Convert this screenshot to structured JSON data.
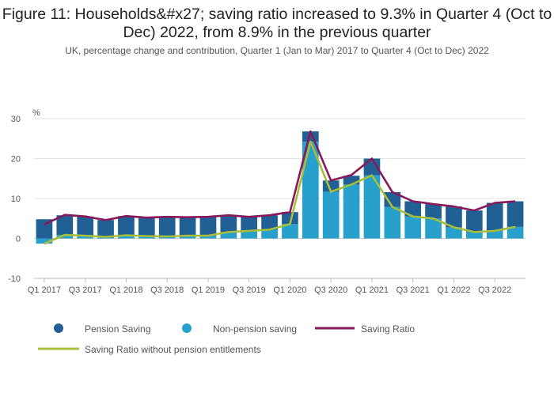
{
  "title": "Figure 11: Households&#x27; saving ratio increased to 9.3% in Quarter 4 (Oct to Dec) 2022, from 8.9% in the previous quarter",
  "subtitle": "UK, percentage change and contribution, Quarter 1 (Jan to Mar) 2017 to Quarter 4 (Oct to Dec) 2022",
  "colors": {
    "pension": "#206095",
    "non_pension": "#27a0cc",
    "ratio": "#871a5b",
    "ratio_ex": "#a8bd3a",
    "grid": "#e3e3e3",
    "axis": "#bbbbbb"
  },
  "chart_data": {
    "type": "bar",
    "stacked": true,
    "ylabel": "%",
    "ylim": [
      -10,
      30
    ],
    "yticks": [
      -10,
      0,
      10,
      20,
      30
    ],
    "x_tick_labels": [
      "Q1 2017",
      "Q3 2017",
      "Q1 2018",
      "Q3 2018",
      "Q1 2019",
      "Q3 2019",
      "Q1 2020",
      "Q3 2020",
      "Q1 2021",
      "Q3 2021",
      "Q1 2022",
      "Q3 2022"
    ],
    "categories": [
      "Q1 2017",
      "Q2 2017",
      "Q3 2017",
      "Q4 2017",
      "Q1 2018",
      "Q2 2018",
      "Q3 2018",
      "Q4 2018",
      "Q1 2019",
      "Q2 2019",
      "Q3 2019",
      "Q4 2019",
      "Q1 2020",
      "Q2 2020",
      "Q3 2020",
      "Q4 2020",
      "Q1 2021",
      "Q2 2021",
      "Q3 2021",
      "Q4 2021",
      "Q1 2022",
      "Q2 2022",
      "Q3 2022",
      "Q4 2022"
    ],
    "legend": [
      "Pension Saving",
      "Non-pension saving",
      "Saving Ratio",
      "Saving Ratio without pension entitlements"
    ],
    "series": [
      {
        "name": "Non-pension saving",
        "kind": "bar",
        "values": [
          -1.3,
          0.9,
          0.7,
          0.4,
          0.8,
          0.6,
          0.5,
          0.7,
          0.7,
          1.6,
          1.9,
          2.2,
          3.6,
          24.2,
          11.7,
          13.5,
          15.8,
          7.9,
          5.5,
          5.0,
          2.8,
          1.6,
          1.9,
          2.9
        ]
      },
      {
        "name": "Pension Saving",
        "kind": "bar",
        "values": [
          4.8,
          4.9,
          4.8,
          4.2,
          4.8,
          4.6,
          4.9,
          4.6,
          4.7,
          4.2,
          3.5,
          3.6,
          3.0,
          2.6,
          2.8,
          2.2,
          4.2,
          3.7,
          3.8,
          3.6,
          5.2,
          5.4,
          7.0,
          6.4
        ]
      },
      {
        "name": "Saving Ratio",
        "kind": "line",
        "values": [
          3.5,
          5.9,
          5.5,
          4.6,
          5.6,
          5.2,
          5.4,
          5.3,
          5.4,
          5.8,
          5.4,
          5.8,
          6.6,
          26.8,
          14.5,
          15.9,
          20.0,
          11.6,
          9.3,
          8.6,
          8.0,
          7.0,
          8.9,
          9.3
        ]
      },
      {
        "name": "Saving Ratio without pension entitlements",
        "kind": "line",
        "values": [
          -1.3,
          0.9,
          0.7,
          0.4,
          0.8,
          0.6,
          0.5,
          0.7,
          0.7,
          1.6,
          1.9,
          2.2,
          3.6,
          24.2,
          11.7,
          13.5,
          15.8,
          7.9,
          5.5,
          5.0,
          2.8,
          1.6,
          1.9,
          2.9
        ]
      }
    ]
  }
}
